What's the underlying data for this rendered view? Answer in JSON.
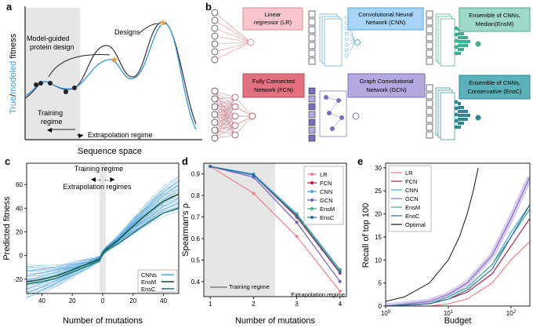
{
  "panel_a": {
    "letter": "a",
    "ylabel_true": "True",
    "ylabel_sep": "/",
    "ylabel_modeled": "modeled",
    "ylabel_rest": " fitness",
    "xlabel": "Sequence space",
    "designs_label": "Designs",
    "guided_label_1": "Model-guided",
    "guided_label_2": "protein design",
    "training_label_1": "Training",
    "training_label_2": "regime",
    "extrapolation_label": "Extrapolation regime",
    "colors": {
      "true": "#333333",
      "model": "#3d9be0",
      "train_bg": "#e6e6e6",
      "star": "#f5a13c"
    }
  },
  "panel_b": {
    "letter": "b",
    "lr": {
      "line1": "Linear",
      "line2": "regressor (LR)",
      "color": "#f7c6cc",
      "border": "#e08a95"
    },
    "fcn": {
      "line1": "Fully Connected",
      "line2": "Network (FCN)",
      "color": "#e2707f",
      "border": "#c0485a"
    },
    "cnn": {
      "line1": "Convolutional Neural",
      "line2": "Network (CNN)",
      "color": "#a7d4f5",
      "border": "#5aa7dd"
    },
    "gcn": {
      "line1": "Graph Convolutional",
      "line2": "Network (GCN)",
      "color": "#b4a8e0",
      "border": "#7d6cc0"
    },
    "ensm": {
      "line1": "Ensemble of CNNs,",
      "line2": "Median(EnsM)",
      "color": "#9fd9c8",
      "border": "#3fae90"
    },
    "ensc": {
      "line1": "Ensemble of CNNs,",
      "line2": "Conservative (EnsC)",
      "color": "#5db1ba",
      "border": "#2f8891"
    }
  },
  "panel_c": {
    "letter": "c",
    "ylabel": "Predicted fitness",
    "xlabel": "Number of mutations",
    "training_label": "Training regime",
    "extrapolation_label": "Extrapolation regimes",
    "legend": [
      "CNNs",
      "EnsM",
      "EnsC"
    ],
    "chart_data": {
      "type": "line",
      "x_ticks": [
        "40",
        "20",
        "0",
        "20",
        "40"
      ],
      "y_ticks": [
        -20,
        0,
        20,
        40,
        60
      ],
      "ylim": [
        -32,
        78
      ],
      "xlim": [
        -50,
        50
      ],
      "series": [
        {
          "name": "EnsM",
          "x": [
            -50,
            -40,
            -30,
            -20,
            -10,
            -2,
            0,
            2,
            10,
            20,
            30,
            40,
            50
          ],
          "y": [
            -22,
            -20,
            -17,
            -12,
            -7,
            -3,
            2,
            5,
            13,
            25,
            36,
            46,
            52
          ]
        },
        {
          "name": "EnsC",
          "x": [
            -50,
            -40,
            -30,
            -20,
            -10,
            -2,
            0,
            2,
            10,
            20,
            30,
            40,
            50
          ],
          "y": [
            -24,
            -22,
            -19,
            -14,
            -9,
            -4,
            1,
            4,
            10,
            19,
            28,
            36,
            40
          ]
        }
      ],
      "colors": {
        "CNNs": "#3d9be0",
        "EnsM": "#1b5c3e",
        "EnsC": "#2c7a7a"
      }
    }
  },
  "panel_d": {
    "letter": "d",
    "ylabel": "Spearman's ρ",
    "xlabel": "Number of mutations",
    "training_label": "Training regime",
    "extrapolation_label": "Extrapolation regime",
    "chart_data": {
      "type": "line",
      "x": [
        1,
        2,
        3,
        4
      ],
      "xlim": [
        0.85,
        4.15
      ],
      "ylim": [
        0.33,
        0.95
      ],
      "y_ticks": [
        0.4,
        0.5,
        0.6,
        0.7,
        0.8,
        0.9
      ],
      "series": [
        {
          "name": "LR",
          "values": [
            0.935,
            0.81,
            0.61,
            0.355
          ],
          "color": "#f08090"
        },
        {
          "name": "FCN",
          "values": [
            0.935,
            0.895,
            0.7,
            0.44
          ],
          "color": "#b02040"
        },
        {
          "name": "CNN",
          "values": [
            0.935,
            0.9,
            0.715,
            0.455
          ],
          "color": "#4ba7e8"
        },
        {
          "name": "GCN",
          "values": [
            0.935,
            0.885,
            0.675,
            0.4
          ],
          "color": "#7060c0"
        },
        {
          "name": "EnsM",
          "values": [
            0.935,
            0.895,
            0.71,
            0.455
          ],
          "color": "#3fae90"
        },
        {
          "name": "EnsC",
          "values": [
            0.935,
            0.895,
            0.705,
            0.445
          ],
          "color": "#2f6f95"
        }
      ]
    }
  },
  "panel_e": {
    "letter": "e",
    "ylabel": "Recall of top 100",
    "xlabel": "Budget",
    "chart_data": {
      "type": "line",
      "x_scale": "log",
      "xlim": [
        1,
        200
      ],
      "ylim": [
        0,
        31
      ],
      "x_ticks": [
        "10^0",
        "10^1",
        "10^2"
      ],
      "y_ticks": [
        0,
        5,
        10,
        15,
        20,
        25,
        30
      ],
      "series": [
        {
          "name": "LR",
          "color": "#f08090",
          "x": [
            1,
            5,
            10,
            20,
            50,
            100,
            200
          ],
          "y": [
            0,
            0,
            0.5,
            1.5,
            5,
            10,
            14
          ]
        },
        {
          "name": "FCN",
          "color": "#b02040",
          "x": [
            1,
            5,
            10,
            20,
            50,
            100,
            200
          ],
          "y": [
            0,
            0.5,
            1.5,
            3,
            7,
            13,
            19
          ]
        },
        {
          "name": "CNN",
          "color": "#4ba7e8",
          "x": [
            1,
            5,
            10,
            20,
            50,
            100,
            200
          ],
          "y": [
            0,
            0.5,
            2,
            4,
            9,
            16,
            22
          ]
        },
        {
          "name": "GCN",
          "color": "#8a70c8",
          "x": [
            1,
            5,
            10,
            20,
            50,
            100,
            200
          ],
          "y": [
            0,
            1,
            2.5,
            5,
            11,
            19,
            28
          ]
        },
        {
          "name": "EnsM",
          "color": "#3fae90",
          "x": [
            1,
            5,
            10,
            20,
            50,
            100,
            200
          ],
          "y": [
            0,
            0.5,
            2,
            4,
            9,
            15,
            21
          ]
        },
        {
          "name": "EnsC",
          "color": "#2f6f95",
          "x": [
            1,
            5,
            10,
            20,
            50,
            100,
            200
          ],
          "y": [
            0,
            0.5,
            1.5,
            3.5,
            8,
            15,
            22
          ]
        },
        {
          "name": "Optimal",
          "color": "#111111",
          "x": [
            1,
            2,
            5,
            10,
            15,
            20,
            25,
            30
          ],
          "y": [
            1,
            2,
            5,
            10,
            15,
            20,
            25,
            30
          ]
        }
      ]
    }
  }
}
